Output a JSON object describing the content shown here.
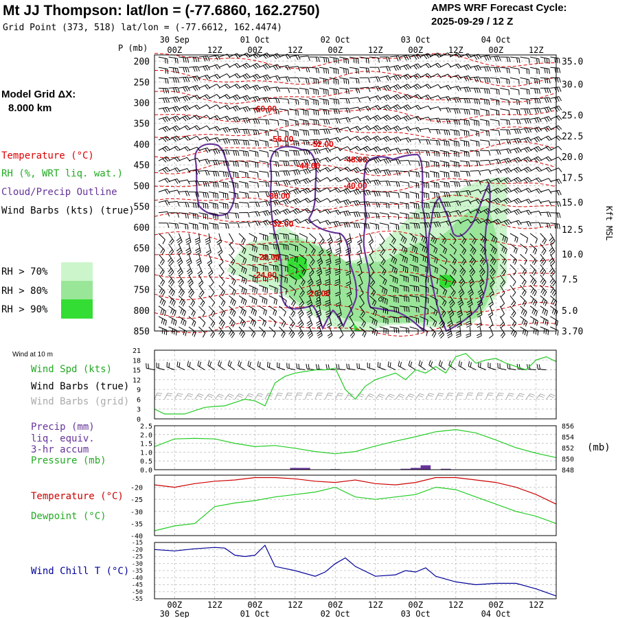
{
  "header": {
    "title": "Mt JJ Thompson:  lat/lon = (-77.6860, 162.2750)",
    "subtitle": "Grid Point (373, 518) lat/lon = (-77.6612, 162.4474)",
    "cycle_line1": "AMPS WRF Forecast Cycle:",
    "cycle_line2": "2025-09-29 / 12  Z"
  },
  "model_grid": {
    "label": "Model Grid ΔX:",
    "value": "8.000 km"
  },
  "legend": {
    "temperature": "Temperature (°C)",
    "rh": "RH (%, WRT liq. wat.)",
    "cloud": "Cloud/Precip Outline",
    "wind": "Wind Barbs (kts) (true)",
    "rh70": "RH > 70%",
    "rh80": "RH > 80%",
    "rh90": "RH > 90%"
  },
  "colors": {
    "temperature": "#dd0000",
    "rh70": "#ccf5cc",
    "rh80": "#99e699",
    "rh90": "#33dd33",
    "cloud": "#663399",
    "green_line": "#22cc22",
    "red_line": "#cc0000",
    "blue_line": "#000099",
    "precip": "#663399",
    "grid_barb": "#aaaaaa"
  },
  "time_axis": {
    "ticks": [
      "00Z",
      "12Z",
      "00Z",
      "12Z",
      "00Z",
      "12Z",
      "00Z",
      "12Z",
      "00Z",
      "12Z"
    ],
    "dates": [
      "30 Sep",
      "01 Oct",
      "02 Oct",
      "03 Oct",
      "04 Oct"
    ],
    "hours": [
      0,
      12,
      24,
      36,
      48,
      60,
      72,
      84,
      96,
      108
    ],
    "date_hours": [
      0,
      24,
      48,
      72,
      96
    ]
  },
  "chart_data": [
    {
      "name": "cross-section",
      "type": "heatmap",
      "ylabel_left": "P (mb)",
      "ylabel_right": "Kft MSL",
      "pressure_ticks": [
        200,
        250,
        300,
        350,
        400,
        450,
        500,
        550,
        600,
        650,
        700,
        750,
        800,
        850
      ],
      "pressure_range": [
        185,
        850
      ],
      "height_ticks": [
        {
          "p": 200,
          "label": "35.0"
        },
        {
          "p": 255,
          "label": "30.0"
        },
        {
          "p": 330,
          "label": "25.0"
        },
        {
          "p": 380,
          "label": "22.5"
        },
        {
          "p": 430,
          "label": "20.0"
        },
        {
          "p": 480,
          "label": "17.5"
        },
        {
          "p": 540,
          "label": "15.0"
        },
        {
          "p": 605,
          "label": "12.5"
        },
        {
          "p": 665,
          "label": "10.0"
        },
        {
          "p": 725,
          "label": "7.5"
        },
        {
          "p": 800,
          "label": "5.0"
        },
        {
          "p": 850,
          "label": "3.70"
        }
      ],
      "time_range_hours": [
        -6,
        114
      ],
      "temperature_labels": [
        {
          "t": 27,
          "p": 315,
          "label": "-60.00"
        },
        {
          "t": 32,
          "p": 388,
          "label": "-56.00"
        },
        {
          "t": 44,
          "p": 400,
          "label": "-52.00"
        },
        {
          "t": 40,
          "p": 452,
          "label": "-44.00"
        },
        {
          "t": 54,
          "p": 437,
          "label": "-48.00"
        },
        {
          "t": 54,
          "p": 500,
          "label": "-40.00"
        },
        {
          "t": 31,
          "p": 525,
          "label": "-36.00"
        },
        {
          "t": 32,
          "p": 592,
          "label": "-32.00"
        },
        {
          "t": 28,
          "p": 672,
          "label": "-28.00"
        },
        {
          "t": 27,
          "p": 715,
          "label": "-24.00"
        },
        {
          "t": 43,
          "p": 760,
          "label": "-20.00"
        }
      ]
    },
    {
      "name": "wind-speed-10m",
      "type": "line",
      "title": "Wind at 10 m",
      "labels": {
        "spd": "Wind Spd (kts)",
        "true": "Wind Barbs (true)",
        "grid": "Wind Barbs (grid)"
      },
      "y_ticks": [
        0,
        3,
        6,
        9,
        12,
        15,
        18,
        21
      ],
      "ylim": [
        0,
        21
      ],
      "series": [
        {
          "name": "Wind Spd (kts)",
          "x": [
            -6,
            -3,
            0,
            3,
            6,
            9,
            12,
            15,
            18,
            21,
            24,
            27,
            30,
            33,
            36,
            39,
            42,
            45,
            48,
            51,
            54,
            57,
            60,
            63,
            66,
            69,
            72,
            75,
            78,
            81,
            84,
            87,
            90,
            93,
            96,
            99,
            102,
            105,
            108,
            111,
            114
          ],
          "values": [
            3,
            1.5,
            1.5,
            1.5,
            2.5,
            3.5,
            3.8,
            4,
            5,
            6,
            5.5,
            4,
            11,
            13,
            14,
            14.5,
            15,
            15,
            15.5,
            9,
            6,
            10,
            12,
            13,
            14,
            12,
            15,
            14,
            16,
            14,
            19,
            20,
            17,
            18,
            18.5,
            17,
            16,
            15,
            18,
            19,
            17.5
          ]
        }
      ]
    },
    {
      "name": "precip-pressure",
      "type": "line",
      "labels": {
        "precip": "Precip (mm)",
        "liq": "liq. equiv.",
        "accum": "3-hr accum",
        "pressure": "Pressure (mb)",
        "unit": "(mb)"
      },
      "precip_ticks": [
        "0.0",
        "0.5",
        "1.0",
        "1.5",
        "2.0",
        "2.5"
      ],
      "pressure_ticks": [
        "848",
        "850",
        "852",
        "854",
        "856"
      ],
      "precip_range": [
        0,
        2.5
      ],
      "pressure_range": [
        848,
        856
      ],
      "series": [
        {
          "name": "Pressure (mb)",
          "x": [
            -6,
            0,
            6,
            12,
            18,
            24,
            30,
            36,
            42,
            48,
            54,
            60,
            66,
            72,
            78,
            84,
            90,
            96,
            102,
            108,
            114
          ],
          "values": [
            852.2,
            853.6,
            853.7,
            853.6,
            852.8,
            852.2,
            852.4,
            851.9,
            851.3,
            850.9,
            851.3,
            852.3,
            853.2,
            854.0,
            854.9,
            855.3,
            854.7,
            853.4,
            852.0,
            851.0,
            850.2
          ]
        }
      ],
      "precip": [
        {
          "t": 36,
          "v": 0.1
        },
        {
          "t": 39,
          "v": 0.1
        },
        {
          "t": 48,
          "v": 0.03
        },
        {
          "t": 69,
          "v": 0.05
        },
        {
          "t": 72,
          "v": 0.1
        },
        {
          "t": 75,
          "v": 0.25
        },
        {
          "t": 81,
          "v": 0.05
        }
      ]
    },
    {
      "name": "temperature-dewpoint",
      "type": "line",
      "labels": {
        "temp": "Temperature (°C)",
        "dew": "Dewpoint (°C)"
      },
      "y_ticks": [
        "-20",
        "-25",
        "-30",
        "-35",
        "-40"
      ],
      "ylim": [
        -40,
        -15
      ],
      "series": [
        {
          "name": "Temperature (°C)",
          "x": [
            -6,
            0,
            6,
            12,
            18,
            24,
            30,
            36,
            42,
            48,
            54,
            60,
            66,
            72,
            78,
            84,
            90,
            96,
            102,
            108,
            114
          ],
          "values": [
            -19,
            -20,
            -18.5,
            -17.5,
            -17,
            -16,
            -16,
            -16.5,
            -17.5,
            -18,
            -17,
            -18.5,
            -19,
            -18,
            -16,
            -16,
            -17,
            -18,
            -20,
            -23,
            -27
          ]
        },
        {
          "name": "Dewpoint (°C)",
          "x": [
            -6,
            0,
            6,
            12,
            18,
            24,
            30,
            36,
            42,
            48,
            54,
            60,
            66,
            72,
            78,
            84,
            90,
            96,
            102,
            108,
            114
          ],
          "values": [
            -38,
            -36,
            -35,
            -28,
            -26.5,
            -25.5,
            -24,
            -23,
            -22,
            -20,
            -24,
            -25,
            -24,
            -23,
            -20,
            -21,
            -24,
            -27,
            -30,
            -32,
            -35
          ]
        }
      ]
    },
    {
      "name": "wind-chill",
      "type": "line",
      "labels": {
        "chill": "Wind Chill T (°C)"
      },
      "y_ticks": [
        "-15",
        "-20",
        "-25",
        "-30",
        "-35",
        "-40",
        "-45",
        "-50",
        "-55"
      ],
      "ylim": [
        -55,
        -15
      ],
      "series": [
        {
          "name": "Wind Chill T (°C)",
          "x": [
            -6,
            0,
            6,
            12,
            15,
            18,
            21,
            24,
            27,
            30,
            36,
            42,
            45,
            48,
            51,
            54,
            60,
            66,
            69,
            72,
            75,
            78,
            84,
            90,
            96,
            102,
            108,
            114
          ],
          "values": [
            -20,
            -21,
            -19.5,
            -18.5,
            -19,
            -24,
            -25,
            -24,
            -17,
            -32,
            -35,
            -39,
            -36,
            -30,
            -26,
            -32,
            -39,
            -38,
            -35,
            -36,
            -33,
            -39,
            -43,
            -45,
            -44,
            -44,
            -48,
            -53
          ]
        }
      ]
    }
  ]
}
